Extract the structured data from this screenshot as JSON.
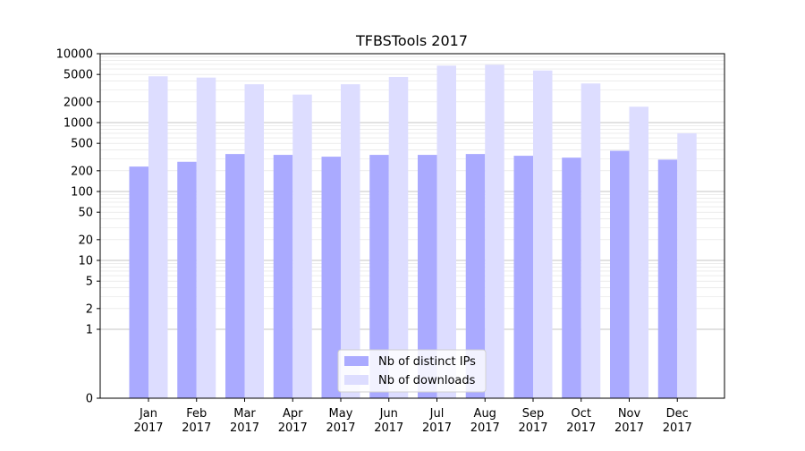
{
  "chart_data": {
    "type": "bar",
    "title": "TFBSTools 2017",
    "xlabel": "",
    "ylabel": "",
    "yscale": "symlog",
    "ylim": [
      0,
      10000
    ],
    "yticks": [
      0,
      1,
      2,
      5,
      10,
      20,
      50,
      100,
      200,
      500,
      1000,
      2000,
      5000,
      10000
    ],
    "ytick_labels": [
      "0",
      "1",
      "2",
      "5",
      "10",
      "20",
      "50",
      "100",
      "200",
      "500",
      "1000",
      "2000",
      "5000",
      "10000"
    ],
    "categories": [
      "Jan\n2017",
      "Feb\n2017",
      "Mar\n2017",
      "Apr\n2017",
      "May\n2017",
      "Jun\n2017",
      "Jul\n2017",
      "Aug\n2017",
      "Sep\n2017",
      "Oct\n2017",
      "Nov\n2017",
      "Dec\n2017"
    ],
    "series": [
      {
        "name": "Nb of distinct IPs",
        "color": "#aaaaff",
        "values": [
          230,
          270,
          350,
          340,
          320,
          340,
          340,
          350,
          330,
          310,
          390,
          290
        ]
      },
      {
        "name": "Nb of downloads",
        "color": "#ddddff",
        "values": [
          4700,
          4500,
          3600,
          2550,
          3600,
          4600,
          6700,
          6900,
          5700,
          3700,
          1700,
          700
        ]
      }
    ],
    "grid": true,
    "legend_position": "lower center"
  },
  "colors": {
    "ips": "#aaaaff",
    "downloads": "#ddddff",
    "grid_major": "#b0b0b0",
    "grid_minor": "#e0e0e0"
  }
}
